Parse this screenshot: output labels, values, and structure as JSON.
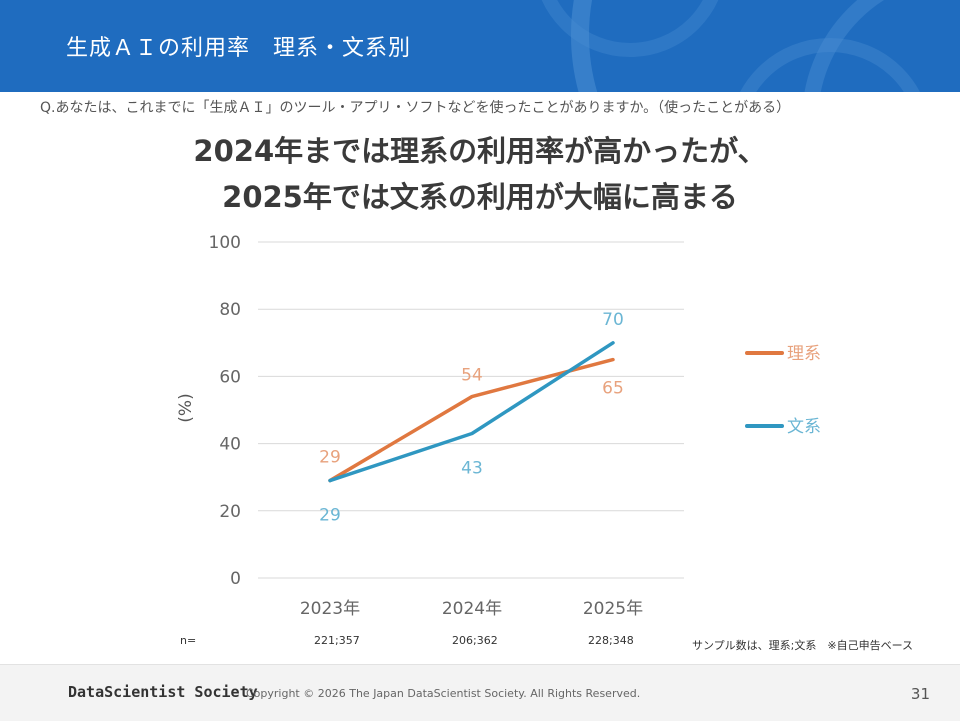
{
  "header": {
    "title": "生成ＡＩの利用率　理系・文系別"
  },
  "question": "Q.あなたは、これまでに「生成ＡＩ」のツール・アプリ・ソフトなどを使ったことがありますか。（使ったことがある）",
  "headline": {
    "line1": "2024年までは理系の利用率が高かったが、",
    "line2": "2025年では文系の利用が大幅に高まる"
  },
  "chart_data": {
    "type": "line",
    "categories": [
      "2023年",
      "2024年",
      "2025年"
    ],
    "series": [
      {
        "name": "理系",
        "values": [
          29,
          54,
          65
        ],
        "color": "#e07840"
      },
      {
        "name": "文系",
        "values": [
          29,
          43,
          70
        ],
        "color": "#2f97c1"
      }
    ],
    "ylabel": "(%)",
    "ylim": [
      0,
      100
    ],
    "yticks": [
      0,
      20,
      40,
      60,
      80,
      100
    ],
    "grid": true,
    "legend_position": "right"
  },
  "sample": {
    "label": "n=",
    "values": [
      "221;357",
      "206;362",
      "228;348"
    ],
    "note": "サンプル数は、理系;文系　※自己申告ベース"
  },
  "footer": {
    "brand": "DataScientist Society",
    "copyright": "Copyright © 2026  The Japan DataScientist Society. All Rights Reserved.",
    "page": "31"
  }
}
